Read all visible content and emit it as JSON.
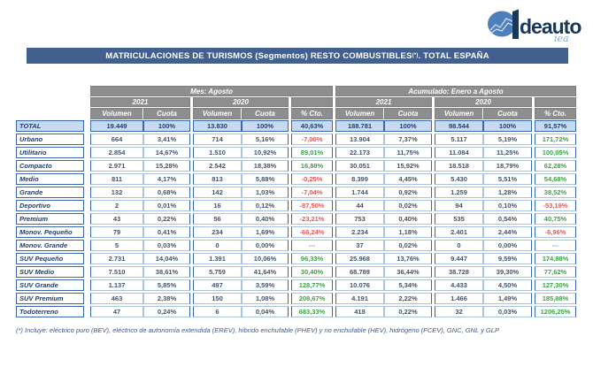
{
  "logo": {
    "name": "deauto",
    "script": "iea"
  },
  "title": {
    "prefix": "MATRICULACIONES DE TURISMOS (Segmentos) RESTO COMBUSTIBLES",
    "sup": "(*)",
    "suffix": ". TOTAL ESPAÑA"
  },
  "table": {
    "header": {
      "groups": [
        {
          "title": "Mes: Agosto",
          "years": [
            "2021",
            "2020"
          ]
        },
        {
          "title": "Acumulado: Enero a Agosto",
          "years": [
            "2021",
            "2020"
          ]
        }
      ],
      "cols": [
        "Volumen",
        "Cuota",
        "Volumen",
        "Cuota",
        "% Cto."
      ]
    },
    "total_row": {
      "label": "TOTAL",
      "cells": [
        "19.449",
        "100%",
        "13.830",
        "100%",
        "40,63%",
        "188.781",
        "100%",
        "98.544",
        "100%",
        "91,57%"
      ]
    },
    "rows": [
      {
        "label": "Urbano",
        "cells": [
          "664",
          "3,41%",
          "714",
          "5,16%",
          "-7,00%",
          "13.904",
          "7,37%",
          "5.117",
          "5,19%",
          "171,72%"
        ]
      },
      {
        "label": "Utilitario",
        "cells": [
          "2.854",
          "14,67%",
          "1.510",
          "10,92%",
          "89,01%",
          "22.173",
          "11,75%",
          "11.084",
          "11,25%",
          "100,05%"
        ]
      },
      {
        "label": "Compacto",
        "cells": [
          "2.971",
          "15,28%",
          "2.542",
          "18,38%",
          "16,88%",
          "30.051",
          "15,92%",
          "18.518",
          "18,79%",
          "62,28%"
        ]
      },
      {
        "label": "Medio",
        "cells": [
          "811",
          "4,17%",
          "813",
          "5,88%",
          "-0,25%",
          "8.399",
          "4,45%",
          "5.430",
          "5,51%",
          "54,68%"
        ]
      },
      {
        "label": "Grande",
        "cells": [
          "132",
          "0,68%",
          "142",
          "1,03%",
          "-7,04%",
          "1.744",
          "0,92%",
          "1.259",
          "1,28%",
          "38,52%"
        ]
      },
      {
        "label": "Deportivo",
        "cells": [
          "2",
          "0,01%",
          "16",
          "0,12%",
          "-87,50%",
          "44",
          "0,02%",
          "94",
          "0,10%",
          "-53,19%"
        ]
      },
      {
        "label": "Premium",
        "cells": [
          "43",
          "0,22%",
          "56",
          "0,40%",
          "-23,21%",
          "753",
          "0,40%",
          "535",
          "0,54%",
          "40,75%"
        ]
      },
      {
        "label": "Monov. Pequeño",
        "cells": [
          "79",
          "0,41%",
          "234",
          "1,69%",
          "-66,24%",
          "2.234",
          "1,18%",
          "2.401",
          "2,44%",
          "-6,96%"
        ]
      },
      {
        "label": "Monov. Grande",
        "cells": [
          "5",
          "0,03%",
          "0",
          "0,00%",
          "---",
          "37",
          "0,02%",
          "0",
          "0,00%",
          "---"
        ]
      },
      {
        "label": "SUV Pequeño",
        "cells": [
          "2.731",
          "14,04%",
          "1.391",
          "10,06%",
          "96,33%",
          "25.968",
          "13,76%",
          "9.447",
          "9,59%",
          "174,88%"
        ]
      },
      {
        "label": "SUV Medio",
        "cells": [
          "7.510",
          "38,61%",
          "5.759",
          "41,64%",
          "30,40%",
          "68.789",
          "36,44%",
          "38.728",
          "39,30%",
          "77,62%"
        ]
      },
      {
        "label": "SUV Grande",
        "cells": [
          "1.137",
          "5,85%",
          "497",
          "3,59%",
          "128,77%",
          "10.076",
          "5,34%",
          "4.433",
          "4,50%",
          "127,30%"
        ]
      },
      {
        "label": "SUV Premium",
        "cells": [
          "463",
          "2,38%",
          "150",
          "1,08%",
          "208,67%",
          "4.191",
          "2,22%",
          "1.466",
          "1,49%",
          "185,88%"
        ]
      },
      {
        "label": "Todoterreno",
        "cells": [
          "47",
          "0,24%",
          "6",
          "0,04%",
          "683,33%",
          "418",
          "0,22%",
          "32",
          "0,03%",
          "1206,25%"
        ]
      }
    ]
  },
  "footnote": "(*) Incluye: eléctrico puro (BEV), eléctrico de autonomía extendida (EREV), híbrido enchufable (PHEV) y no enchufable (HEV), hidrógeno (FCEV), GNC, GNL y GLP",
  "colors": {
    "accent_bar": "#41608F",
    "header_gray": "#8E8E8E",
    "total_row_bg": "#C7DAF0",
    "navy_text": "#1F3E6E",
    "data_text": "#44546A",
    "border_dark": "#3A66AE",
    "border_light": "#A9C3E2",
    "positive": "#3FA047",
    "negative": "#D95C5C",
    "neutral_dash": "#98A2AC"
  }
}
